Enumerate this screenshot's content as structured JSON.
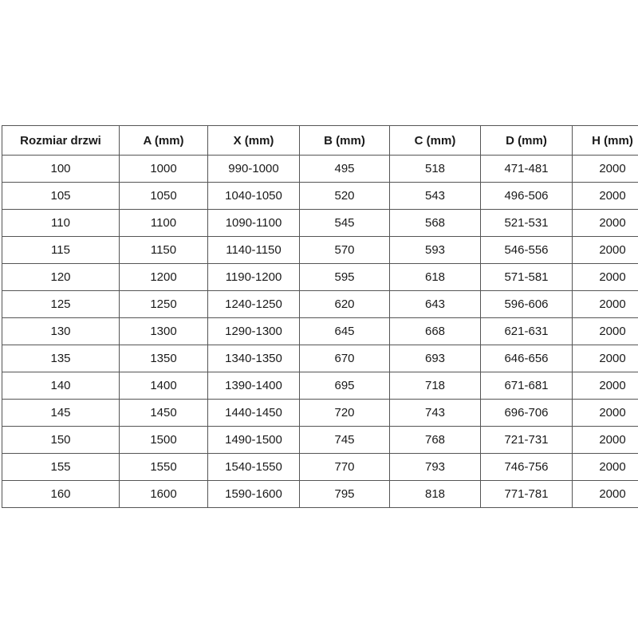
{
  "table": {
    "headers": [
      "Rozmiar drzwi",
      "A (mm)",
      "X (mm)",
      "B (mm)",
      "C (mm)",
      "D (mm)",
      "H (mm)"
    ],
    "rows": [
      [
        "100",
        "1000",
        "990-1000",
        "495",
        "518",
        "471-481",
        "2000"
      ],
      [
        "105",
        "1050",
        "1040-1050",
        "520",
        "543",
        "496-506",
        "2000"
      ],
      [
        "110",
        "1100",
        "1090-1100",
        "545",
        "568",
        "521-531",
        "2000"
      ],
      [
        "115",
        "1150",
        "1140-1150",
        "570",
        "593",
        "546-556",
        "2000"
      ],
      [
        "120",
        "1200",
        "1190-1200",
        "595",
        "618",
        "571-581",
        "2000"
      ],
      [
        "125",
        "1250",
        "1240-1250",
        "620",
        "643",
        "596-606",
        "2000"
      ],
      [
        "130",
        "1300",
        "1290-1300",
        "645",
        "668",
        "621-631",
        "2000"
      ],
      [
        "135",
        "1350",
        "1340-1350",
        "670",
        "693",
        "646-656",
        "2000"
      ],
      [
        "140",
        "1400",
        "1390-1400",
        "695",
        "718",
        "671-681",
        "2000"
      ],
      [
        "145",
        "1450",
        "1440-1450",
        "720",
        "743",
        "696-706",
        "2000"
      ],
      [
        "150",
        "1500",
        "1490-1500",
        "745",
        "768",
        "721-731",
        "2000"
      ],
      [
        "155",
        "1550",
        "1540-1550",
        "770",
        "793",
        "746-756",
        "2000"
      ],
      [
        "160",
        "1600",
        "1590-1600",
        "795",
        "818",
        "771-781",
        "2000"
      ]
    ],
    "border_color": "#555555",
    "text_color": "#1a1a1a",
    "background_color": "#ffffff"
  }
}
